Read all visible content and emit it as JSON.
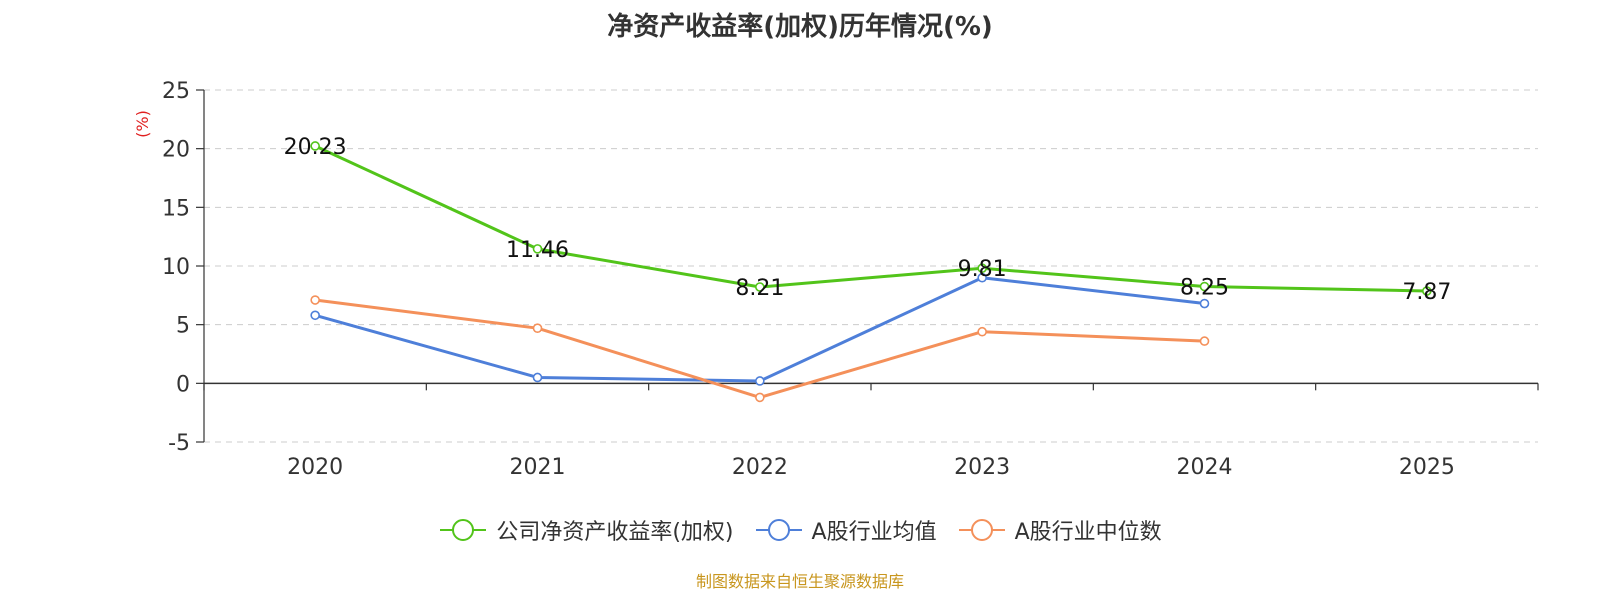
{
  "chart_data": {
    "type": "line",
    "title": "净资产收益率(加权)历年情况(%)",
    "ylabel": "(%)",
    "categories": [
      "2020",
      "2021",
      "2022",
      "2023",
      "2024",
      "2025"
    ],
    "ylim": [
      -5,
      25
    ],
    "yticks": [
      -5,
      0,
      5,
      10,
      15,
      20,
      25
    ],
    "grid": true,
    "legend_position": "bottom",
    "series": [
      {
        "name": "公司净资产收益率(加权)",
        "color": "#52c41a",
        "values": [
          20.23,
          11.46,
          8.21,
          9.81,
          8.25,
          7.87
        ],
        "labels": [
          "20.23",
          "11.46",
          "8.21",
          "9.81",
          "8.25",
          "7.87"
        ]
      },
      {
        "name": "A股行业均值",
        "color": "#4e7fd9",
        "values": [
          5.8,
          0.5,
          0.2,
          9.0,
          6.8,
          null
        ]
      },
      {
        "name": "A股行业中位数",
        "color": "#f4905a",
        "values": [
          7.1,
          4.7,
          -1.2,
          4.4,
          3.6,
          null
        ]
      }
    ]
  },
  "source": "制图数据来自恒生聚源数据库"
}
